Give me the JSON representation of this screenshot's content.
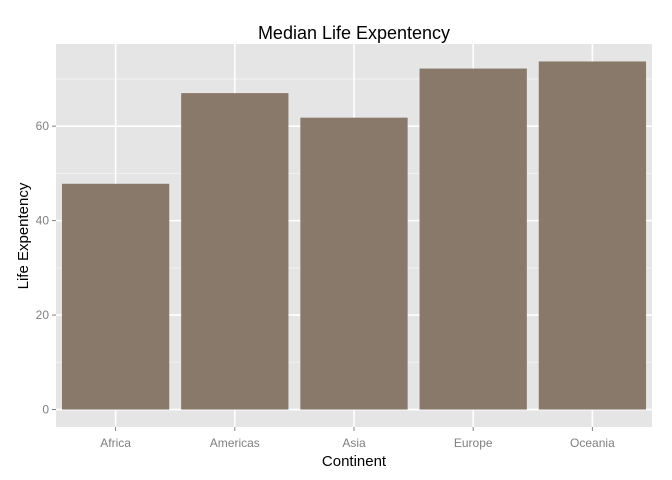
{
  "chart_data": {
    "type": "bar",
    "title": "Median Life Expentency",
    "xlabel": "Continent",
    "ylabel": "Life Expentency",
    "categories": [
      "Africa",
      "Americas",
      "Asia",
      "Europe",
      "Oceania"
    ],
    "values": [
      47.8,
      67.0,
      61.8,
      72.2,
      73.7
    ],
    "ylim": [
      -3.7,
      77.4
    ],
    "yticks": [
      0,
      20,
      40,
      60
    ],
    "ytick_labels": [
      "0",
      "20",
      "40",
      "60"
    ],
    "grid": true,
    "colors": {
      "bar": "#89796A",
      "panel": "#E5E5E5",
      "grid_major": "#FFFFFF",
      "grid_minor": "#F2F2F2"
    }
  }
}
